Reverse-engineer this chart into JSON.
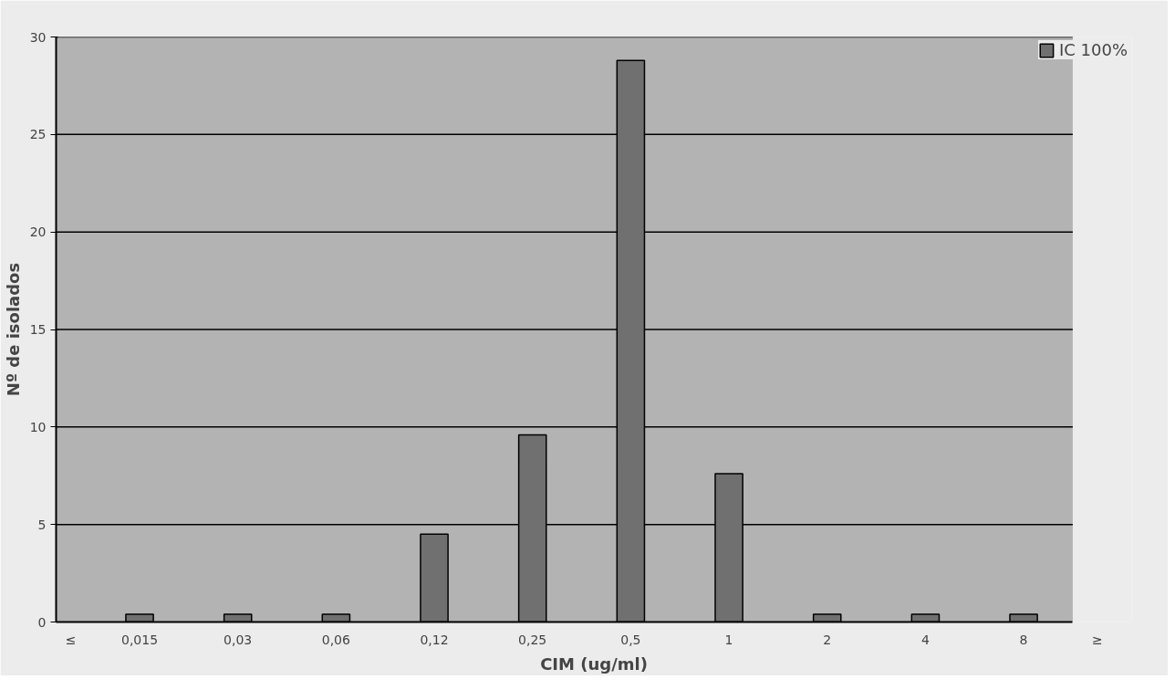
{
  "chart_data": {
    "type": "bar",
    "xlabel": "CIM (ug/ml)",
    "ylabel": "Nº de isolados",
    "categories": [
      "0,015",
      "0,03",
      "0,06",
      "0,12",
      "0,25",
      "0,5",
      "1",
      "2",
      "4",
      "8"
    ],
    "series": [
      {
        "name": "IC 100%",
        "color": "#707070",
        "values": [
          0.4,
          0.4,
          0.4,
          4.5,
          9.6,
          28.8,
          7.6,
          0.4,
          0.4,
          0.4
        ]
      }
    ],
    "annotations": [
      "≤",
      "≥"
    ],
    "ylim": [
      0,
      30
    ],
    "yticks": [
      0,
      5,
      10,
      15,
      20,
      25,
      30
    ],
    "grid": "y",
    "legend": "top right"
  }
}
